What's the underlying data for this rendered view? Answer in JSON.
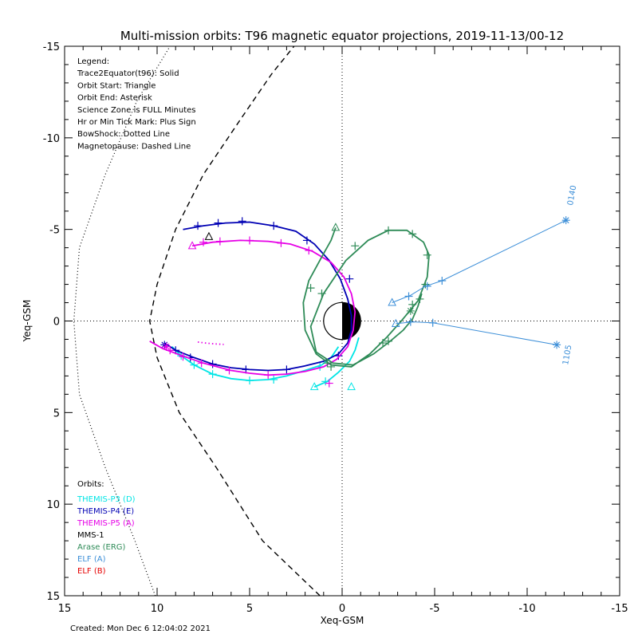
{
  "chart_data": {
    "type": "line",
    "title": "Multi-mission orbits: T96 magnetic equator projections, 2019-11-13/00-12",
    "xlabel": "Xeq-GSM",
    "ylabel": "Yeq-GSM",
    "xlim": [
      15,
      -15
    ],
    "ylim": [
      -15,
      15
    ],
    "x_ticks": [
      15,
      10,
      5,
      0,
      -5,
      -10,
      -15
    ],
    "y_ticks": [
      -15,
      -10,
      -5,
      0,
      5,
      10,
      15
    ],
    "x_tick_labels": [
      "15",
      "10",
      "5",
      "0",
      "-5",
      "-10",
      "-15"
    ],
    "y_tick_labels": [
      "-15",
      "-10",
      "-5",
      "0",
      "5",
      "10",
      "15"
    ],
    "created": "Created: Mon Dec  6 12:04:02 2021",
    "legend_lines": [
      "Legend:",
      "Trace2Equator(t96): Solid",
      "Orbit Start: Triangle",
      "Orbit End: Asterisk",
      "Science Zone is FULL Minutes",
      "Hr or Min Tick Mark: Plus Sign",
      "BowShock: Dotted Line",
      "Magnetopause: Dashed Line"
    ],
    "orbits_heading": "Orbits:",
    "orbit_labels": [
      {
        "name": "THEMIS-P3 (D)",
        "color": "#00e5e5"
      },
      {
        "name": "THEMIS-P4 (E)",
        "color": "#0000b4"
      },
      {
        "name": "THEMIS-P5 (A)",
        "color": "#e600e6"
      },
      {
        "name": "MMS-1",
        "color": "#000000"
      },
      {
        "name": "Arase (ERG)",
        "color": "#2e8b57"
      },
      {
        "name": "ELF (A)",
        "color": "#3d8fd8"
      },
      {
        "name": "ELF (B)",
        "color": "#e60000"
      }
    ],
    "time_labels": [
      "0140",
      "1105"
    ],
    "bow_shock": [
      [
        10.1,
        15
      ],
      [
        11.2,
        12
      ],
      [
        12.8,
        8
      ],
      [
        14.2,
        4
      ],
      [
        14.5,
        0
      ],
      [
        14.2,
        -4
      ],
      [
        12.8,
        -8
      ],
      [
        11.1,
        -12
      ],
      [
        9.3,
        -15
      ]
    ],
    "magnetopause": [
      [
        1.2,
        15
      ],
      [
        4.3,
        12
      ],
      [
        6.8,
        8
      ],
      [
        8.8,
        5
      ],
      [
        10.0,
        2
      ],
      [
        10.4,
        0
      ],
      [
        10.0,
        -2
      ],
      [
        9.0,
        -5
      ],
      [
        7.5,
        -8
      ],
      [
        5.5,
        -11
      ],
      [
        3.8,
        -13.5
      ],
      [
        2.6,
        -15
      ]
    ],
    "series": [
      {
        "name": "THEMIS-P3 (D)",
        "color": "#00e5e5",
        "points": [
          [
            9.2,
            1.4
          ],
          [
            8.7,
            1.9
          ],
          [
            8.0,
            2.4
          ],
          [
            7.0,
            2.9
          ],
          [
            6.0,
            3.15
          ],
          [
            5.0,
            3.25
          ],
          [
            4.0,
            3.2
          ],
          [
            3.0,
            3.0
          ],
          [
            2.0,
            2.7
          ],
          [
            1.1,
            2.4
          ],
          [
            0.6,
            2.0
          ],
          [
            0.2,
            1.4
          ]
        ],
        "ticks": [
          [
            8.7,
            1.9
          ],
          [
            8.0,
            2.4
          ],
          [
            7.0,
            2.9
          ],
          [
            5.0,
            3.25
          ],
          [
            3.7,
            3.2
          ],
          [
            1.2,
            2.5
          ]
        ],
        "start": [
          -0.5,
          3.6
        ],
        "end": null
      },
      {
        "name": "THEMIS-P3 (D) lower",
        "color": "#00e5e5",
        "points": [
          [
            -0.9,
            0.9
          ],
          [
            -0.7,
            1.6
          ],
          [
            -0.4,
            2.2
          ],
          [
            0.2,
            2.8
          ],
          [
            0.8,
            3.3
          ],
          [
            1.5,
            3.6
          ]
        ],
        "ticks": [
          [
            0.9,
            3.3
          ]
        ],
        "start": [
          1.5,
          3.6
        ],
        "end": null
      },
      {
        "name": "THEMIS-P4 (E)",
        "color": "#0000b4",
        "points": [
          [
            9.6,
            1.2
          ],
          [
            9.0,
            1.6
          ],
          [
            8.0,
            2.0
          ],
          [
            7.0,
            2.35
          ],
          [
            6.0,
            2.55
          ],
          [
            5.0,
            2.65
          ],
          [
            4.0,
            2.7
          ],
          [
            3.0,
            2.65
          ],
          [
            2.0,
            2.45
          ],
          [
            1.0,
            2.2
          ],
          [
            0.2,
            1.8
          ],
          [
            -0.3,
            1.2
          ],
          [
            -0.5,
            0.5
          ],
          [
            -0.5,
            -0.3
          ],
          [
            -0.3,
            -1.2
          ],
          [
            0.1,
            -2.3
          ],
          [
            0.7,
            -3.3
          ],
          [
            1.5,
            -4.2
          ],
          [
            2.5,
            -4.9
          ],
          [
            3.7,
            -5.2
          ],
          [
            5.0,
            -5.4
          ],
          [
            6.3,
            -5.35
          ],
          [
            7.5,
            -5.2
          ],
          [
            8.6,
            -5.0
          ]
        ],
        "ticks": [
          [
            9.0,
            1.6
          ],
          [
            8.2,
            2.0
          ],
          [
            7.0,
            2.35
          ],
          [
            5.2,
            2.65
          ],
          [
            3.0,
            2.65
          ],
          [
            0.2,
            1.9
          ],
          [
            -0.4,
            -2.3
          ],
          [
            1.9,
            -4.4
          ],
          [
            3.7,
            -5.2
          ],
          [
            5.4,
            -5.45
          ],
          [
            6.7,
            -5.35
          ],
          [
            7.8,
            -5.2
          ]
        ],
        "start": null,
        "end": [
          9.6,
          1.3
        ]
      },
      {
        "name": "THEMIS-P5 (A)",
        "color": "#e600e6",
        "points": [
          [
            10.4,
            1.1
          ],
          [
            9.7,
            1.5
          ],
          [
            8.5,
            1.95
          ],
          [
            7.5,
            2.3
          ],
          [
            6.0,
            2.7
          ],
          [
            5.0,
            2.85
          ],
          [
            4.0,
            2.95
          ],
          [
            3.0,
            2.9
          ],
          [
            2.0,
            2.75
          ],
          [
            1.0,
            2.5
          ],
          [
            0.3,
            2.1
          ],
          [
            -0.3,
            1.4
          ],
          [
            -0.6,
            0.5
          ],
          [
            -0.7,
            -0.5
          ],
          [
            -0.5,
            -1.5
          ],
          [
            -0.1,
            -2.4
          ],
          [
            0.6,
            -3.2
          ],
          [
            1.6,
            -3.8
          ],
          [
            2.8,
            -4.2
          ],
          [
            4.0,
            -4.35
          ],
          [
            5.5,
            -4.4
          ],
          [
            7.0,
            -4.3
          ],
          [
            8.1,
            -4.1
          ]
        ],
        "ticks": [
          [
            9.3,
            1.6
          ],
          [
            8.6,
            1.95
          ],
          [
            7.6,
            2.3
          ],
          [
            6.1,
            2.7
          ],
          [
            4.0,
            2.95
          ],
          [
            0.7,
            3.4
          ],
          [
            1.8,
            -3.85
          ],
          [
            3.3,
            -4.25
          ],
          [
            5.0,
            -4.4
          ],
          [
            6.6,
            -4.35
          ],
          [
            7.5,
            -4.3
          ]
        ],
        "start": [
          8.1,
          -4.1
        ],
        "end": [
          9.5,
          1.4
        ]
      },
      {
        "name": "THEMIS-P5 (A) fragment",
        "color": "#e600e6",
        "points": [
          [
            7.8,
            1.15
          ],
          [
            7.4,
            1.2
          ],
          [
            6.9,
            1.25
          ],
          [
            6.4,
            1.28
          ]
        ],
        "ticks": [],
        "start": null,
        "end": null,
        "dotted": true
      },
      {
        "name": "MMS-1",
        "color": "#000000",
        "points": [],
        "ticks": [],
        "start": [
          7.2,
          -4.6
        ],
        "end": null
      },
      {
        "name": "Arase (ERG)",
        "color": "#2e8b57",
        "points": [
          [
            0.35,
            -5.1
          ],
          [
            0.6,
            -4.4
          ],
          [
            1.1,
            -3.5
          ],
          [
            1.8,
            -2.2
          ],
          [
            2.1,
            -1.0
          ],
          [
            2.0,
            0.5
          ],
          [
            1.4,
            1.8
          ],
          [
            0.6,
            2.4
          ],
          [
            -0.5,
            2.5
          ],
          [
            -1.5,
            1.8
          ],
          [
            -2.4,
            0.9
          ],
          [
            -3.2,
            0.0
          ],
          [
            -4.1,
            -1.1
          ],
          [
            -4.6,
            -2.4
          ],
          [
            -4.7,
            -3.6
          ],
          [
            -4.4,
            -4.3
          ],
          [
            -3.5,
            -4.95
          ],
          [
            -2.5,
            -4.95
          ],
          [
            -1.4,
            -4.4
          ],
          [
            -0.2,
            -3.3
          ],
          [
            1.0,
            -1.5
          ],
          [
            1.7,
            0.3
          ],
          [
            1.4,
            1.7
          ],
          [
            0.5,
            2.3
          ],
          [
            -0.6,
            2.4
          ],
          [
            -1.7,
            1.8
          ],
          [
            -2.6,
            1.1
          ],
          [
            -3.3,
            0.5
          ],
          [
            -3.8,
            -0.1
          ],
          [
            -4.1,
            -0.8
          ],
          [
            -4.3,
            -1.5
          ]
        ],
        "ticks": [
          [
            1.7,
            -1.8
          ],
          [
            0.6,
            2.5
          ],
          [
            -2.2,
            1.2
          ],
          [
            -3.8,
            -0.9
          ],
          [
            -4.5,
            -2.0
          ],
          [
            -4.6,
            -3.6
          ],
          [
            -3.8,
            -4.75
          ],
          [
            -2.5,
            -4.95
          ],
          [
            -0.7,
            -4.1
          ],
          [
            1.1,
            -1.5
          ],
          [
            0.8,
            2.3
          ],
          [
            -2.5,
            1.1
          ],
          [
            -4.2,
            -1.2
          ]
        ],
        "start": [
          0.35,
          -5.1
        ],
        "end": [
          -3.7,
          -0.55
        ]
      },
      {
        "name": "ELF (A) 0140",
        "color": "#3d8fd8",
        "points": [
          [
            -2.7,
            -1.0
          ],
          [
            -3.7,
            -1.4
          ],
          [
            -4.5,
            -1.9
          ],
          [
            -5.4,
            -2.2
          ],
          [
            -12.1,
            -5.5
          ]
        ],
        "ticks": [
          [
            -3.6,
            -1.35
          ],
          [
            -4.6,
            -1.9
          ],
          [
            -5.4,
            -2.2
          ]
        ],
        "start": [
          -2.7,
          -1.0
        ],
        "end": [
          -12.1,
          -5.5
        ]
      },
      {
        "name": "ELF (A) 1105",
        "color": "#3d8fd8",
        "points": [
          [
            -2.9,
            0.15
          ],
          [
            -3.8,
            0.05
          ],
          [
            -4.9,
            0.1
          ],
          [
            -11.6,
            1.3
          ]
        ],
        "ticks": [
          [
            -3.7,
            0.05
          ],
          [
            -4.9,
            0.1
          ]
        ],
        "start": [
          -2.9,
          0.15
        ],
        "end": [
          -11.6,
          1.3
        ]
      }
    ]
  }
}
